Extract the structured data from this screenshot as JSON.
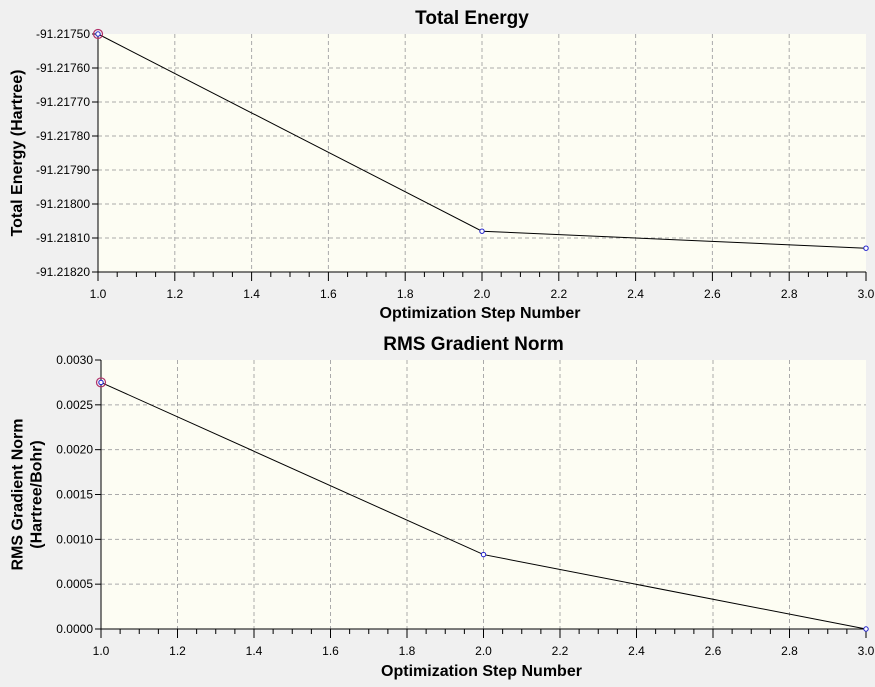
{
  "chart_data": [
    {
      "type": "line",
      "title": "Total Energy",
      "xlabel": "Optimization Step Number",
      "ylabel": [
        "Total Energy (Hartree)"
      ],
      "xlim": [
        1.0,
        3.0
      ],
      "ylim": [
        -91.2182,
        -91.2175
      ],
      "x_ticks": [
        "1.0",
        "1.2",
        "1.4",
        "1.6",
        "1.8",
        "2.0",
        "2.2",
        "2.4",
        "2.6",
        "2.8",
        "3.0"
      ],
      "y_ticks": [
        "-91.21750",
        "-91.21760",
        "-91.21770",
        "-91.21780",
        "-91.21790",
        "-91.21800",
        "-91.21810",
        "-91.21820"
      ],
      "grid": true,
      "x": [
        1,
        2,
        3
      ],
      "y": [
        -91.2175,
        -91.21808,
        -91.21813
      ]
    },
    {
      "type": "line",
      "title": "RMS Gradient Norm",
      "xlabel": "Optimization Step Number",
      "ylabel": [
        "RMS Gradient Norm",
        "(Hartree/Bohr)"
      ],
      "xlim": [
        1.0,
        3.0
      ],
      "ylim": [
        0.0,
        0.003
      ],
      "x_ticks": [
        "1.0",
        "1.2",
        "1.4",
        "1.6",
        "1.8",
        "2.0",
        "2.2",
        "2.4",
        "2.6",
        "2.8",
        "3.0"
      ],
      "y_ticks": [
        "0.0030",
        "0.0025",
        "0.0020",
        "0.0015",
        "0.0010",
        "0.0005",
        "0.0000"
      ],
      "grid": true,
      "x": [
        1,
        2,
        3
      ],
      "y": [
        0.00275,
        0.00083,
        0.0
      ]
    }
  ],
  "colors": {
    "window_bg": "#f0f0f0",
    "plot_bg": "#fdfdf3",
    "grid": "#aaaaaa",
    "line": "#000000",
    "marker": "#1f1fcc",
    "first_marker": "#b0306a"
  }
}
